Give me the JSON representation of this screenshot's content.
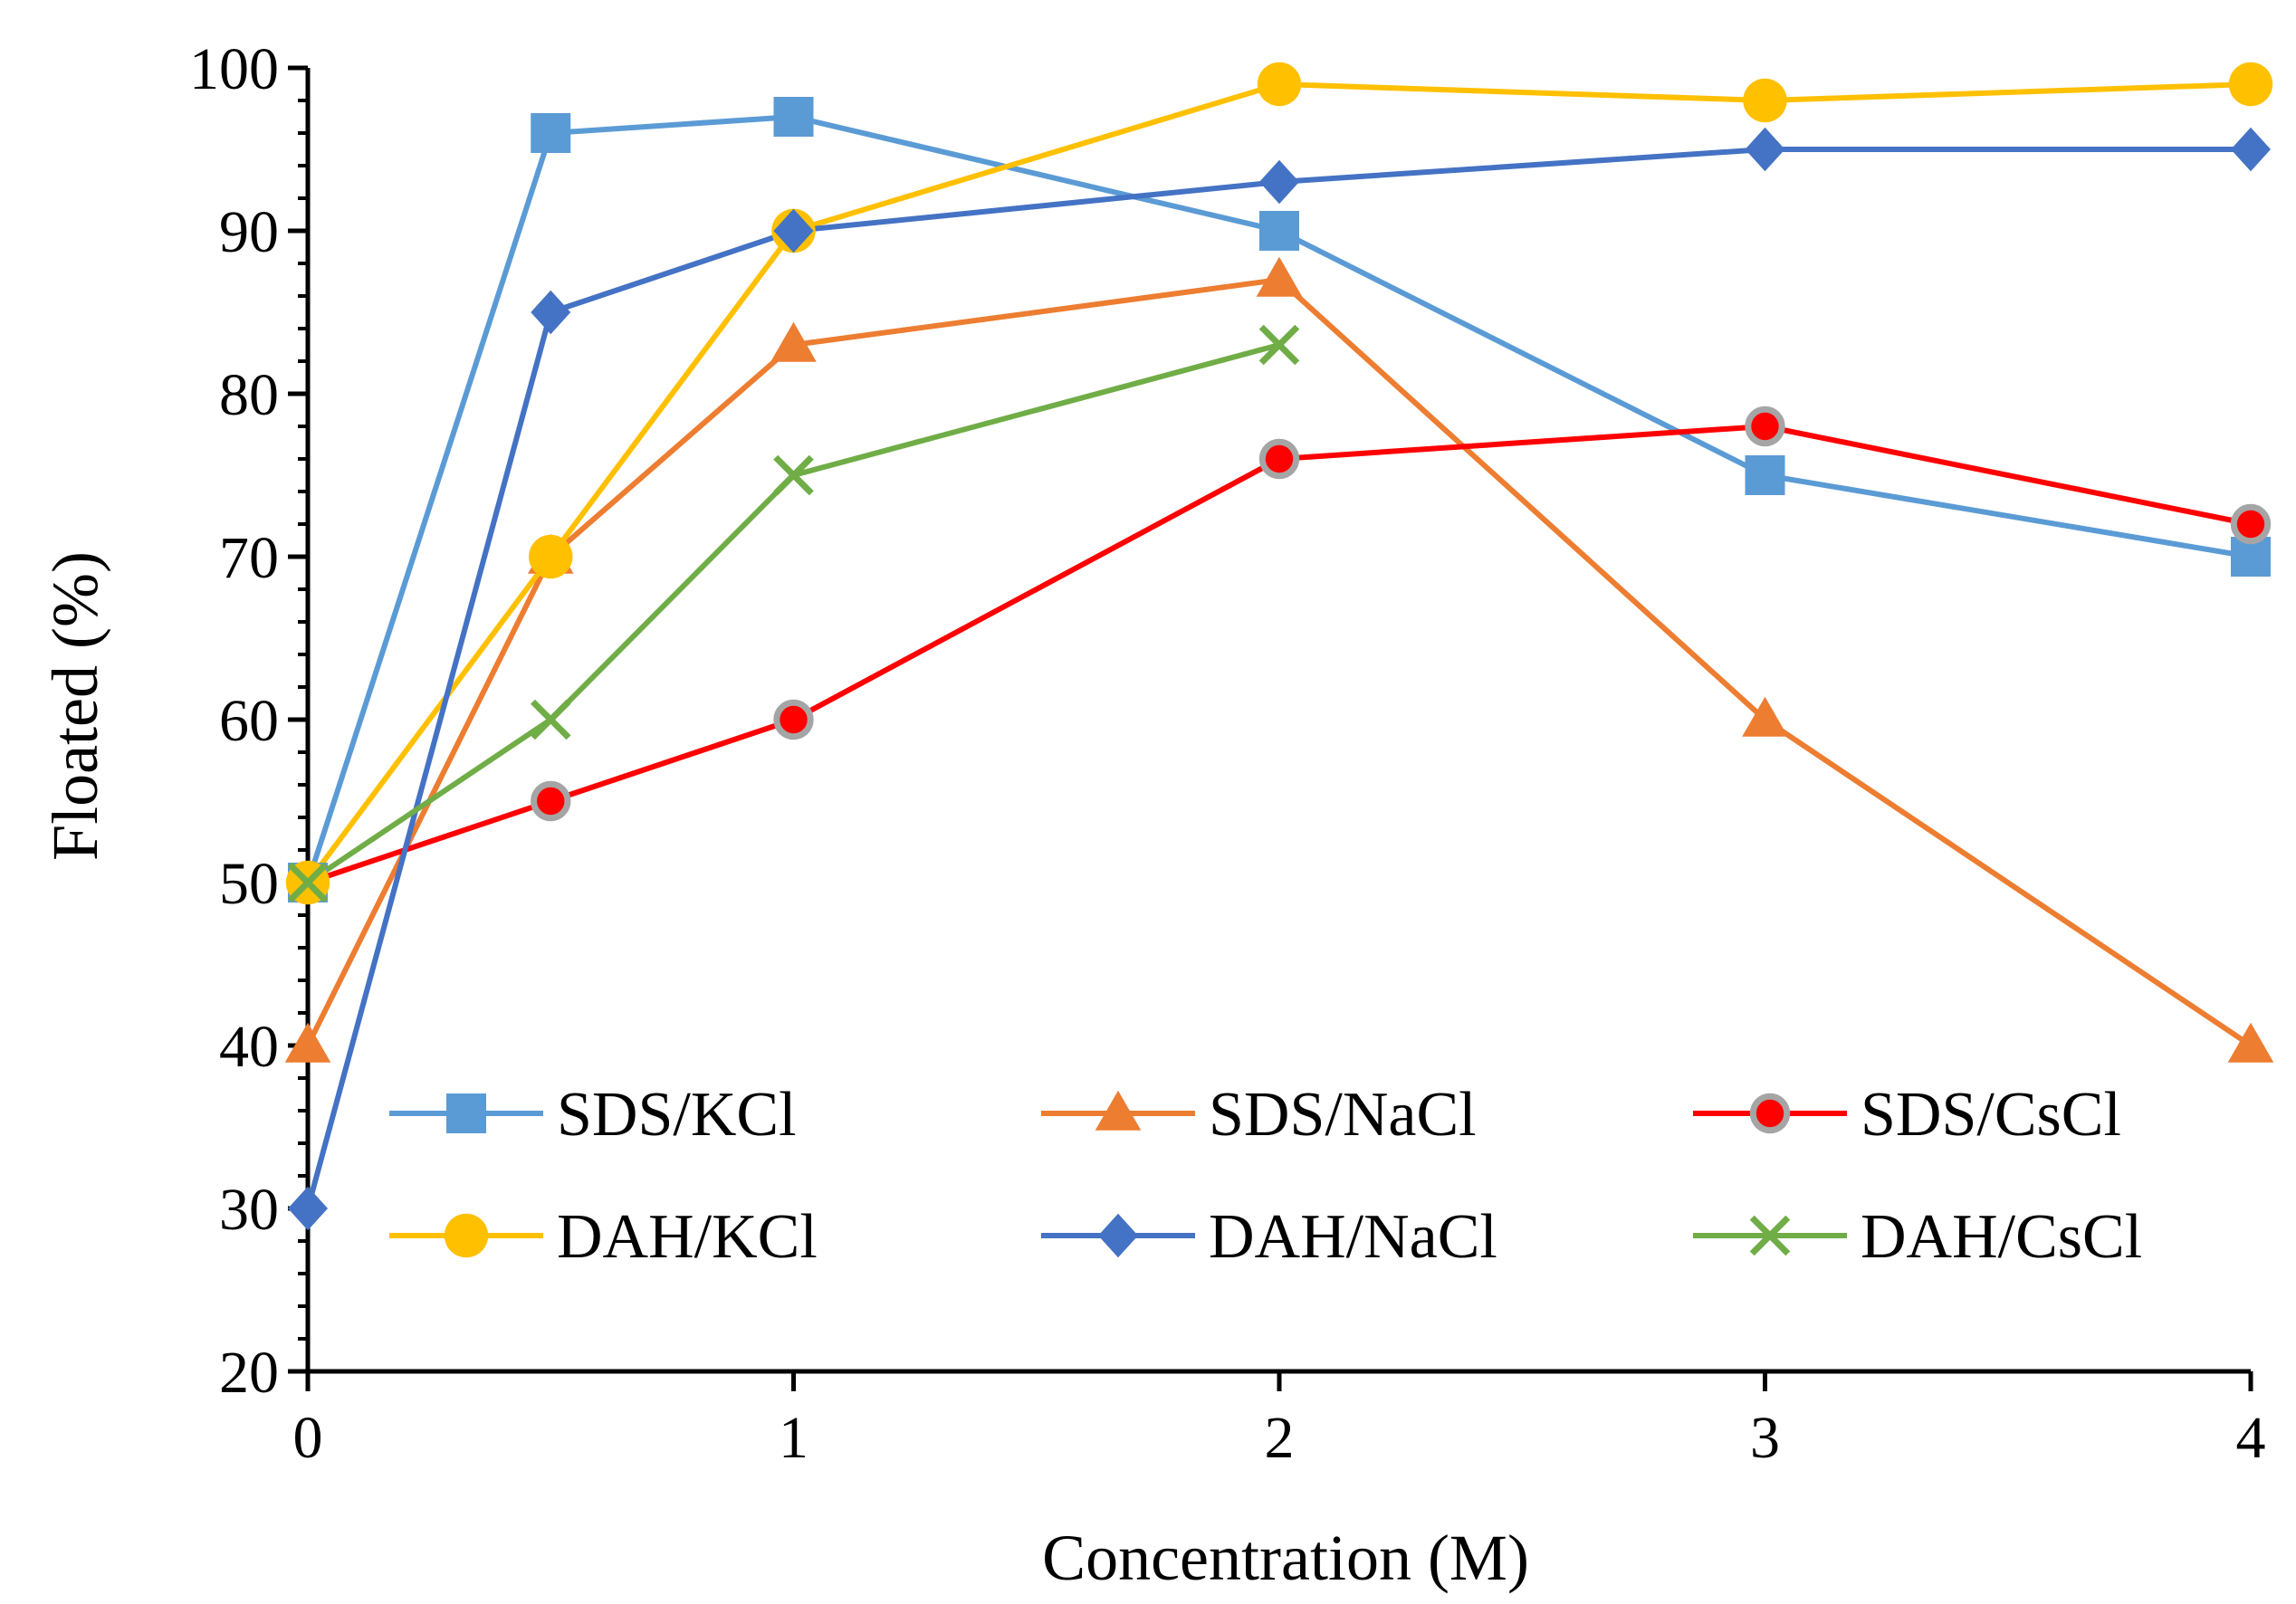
{
  "chart_data": {
    "type": "line",
    "title": "",
    "xlabel": "Concentration (M)",
    "ylabel": "Floated (%)",
    "xlim": [
      0,
      4
    ],
    "ylim": [
      20,
      100
    ],
    "xticks": [
      0,
      1,
      2,
      3,
      4
    ],
    "yticks": [
      20,
      30,
      40,
      50,
      60,
      70,
      80,
      90,
      100
    ],
    "grid": false,
    "legend_position": "bottom-inside",
    "series": [
      {
        "name": "SDS/KCl",
        "color": "#5B9BD5",
        "marker": "square",
        "x": [
          0,
          0.5,
          1,
          2,
          3,
          4
        ],
        "y": [
          50,
          96,
          97,
          90,
          75,
          70
        ]
      },
      {
        "name": "SDS/NaCl",
        "color": "#ED7D31",
        "marker": "triangle",
        "x": [
          0,
          0.5,
          1,
          2,
          3,
          4
        ],
        "y": [
          40,
          70,
          83,
          87,
          60,
          40
        ]
      },
      {
        "name": "SDS/CsCl",
        "color": "#FF0000",
        "marker": "circle-ring",
        "marker_edge": "#A5A5A5",
        "x": [
          0,
          0.5,
          1,
          2,
          3,
          4
        ],
        "y": [
          50,
          55,
          60,
          76,
          78,
          72
        ]
      },
      {
        "name": "DAH/KCl",
        "color": "#FFC000",
        "marker": "circle",
        "x": [
          0,
          0.5,
          1,
          2,
          3,
          4
        ],
        "y": [
          50,
          70,
          90,
          99,
          98,
          99
        ]
      },
      {
        "name": "DAH/NaCl",
        "color": "#4472C4",
        "marker": "diamond",
        "x": [
          0,
          0.5,
          1,
          2,
          3,
          4
        ],
        "y": [
          30,
          85,
          90,
          93,
          95,
          95
        ]
      },
      {
        "name": "DAH/CsCl",
        "color": "#70AD47",
        "marker": "x",
        "x": [
          0,
          0.5,
          1,
          2
        ],
        "y": [
          50,
          60,
          75,
          83
        ]
      }
    ]
  }
}
